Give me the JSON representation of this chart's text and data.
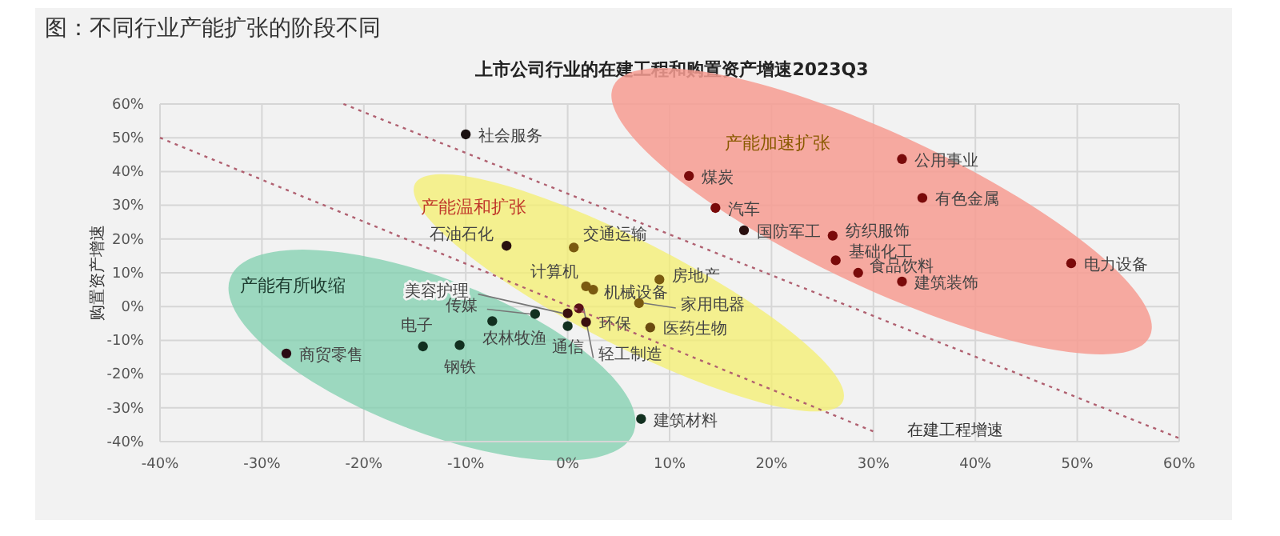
{
  "chart_data": {
    "type": "scatter",
    "title": "图：不同行业产能扩张的阶段不同",
    "subtitle": "上市公司行业的在建工程和购置资产增速2023Q3",
    "xlabel": "在建工程增速",
    "ylabel": "购置资产增速",
    "annotations": [
      "产能有所收缩",
      "产能温和扩张",
      "产能加速扩张"
    ],
    "xlim": [
      -40,
      60
    ],
    "ylim": [
      -40,
      60
    ],
    "xticks": [
      {
        "value": -40,
        "label": "-40%"
      },
      {
        "value": -30,
        "label": "-30%"
      },
      {
        "value": -20,
        "label": "-20%"
      },
      {
        "value": -10,
        "label": "-10%"
      },
      {
        "value": 0,
        "label": "0%"
      },
      {
        "value": 10,
        "label": "10%"
      },
      {
        "value": 20,
        "label": "20%"
      },
      {
        "value": 30,
        "label": "30%"
      },
      {
        "value": 40,
        "label": "40%"
      },
      {
        "value": 50,
        "label": "50%"
      },
      {
        "value": 60,
        "label": "60%"
      }
    ],
    "yticks": [
      {
        "value": -40,
        "label": "-40%"
      },
      {
        "value": -30,
        "label": "-30%"
      },
      {
        "value": -20,
        "label": "-20%"
      },
      {
        "value": -10,
        "label": "-10%"
      },
      {
        "value": 0,
        "label": "0%"
      },
      {
        "value": 10,
        "label": "10%"
      },
      {
        "value": 20,
        "label": "20%"
      },
      {
        "value": 30,
        "label": "30%"
      },
      {
        "value": 40,
        "label": "40%"
      },
      {
        "value": 50,
        "label": "50%"
      },
      {
        "value": 60,
        "label": "60%"
      }
    ],
    "grid": true,
    "marker": "circle",
    "series": [
      {
        "name": "社会服务",
        "color": "#1a1010",
        "x": [
          -10
        ],
        "values": [
          51
        ]
      },
      {
        "name": "石油石化",
        "color": "#2a1010",
        "x": [
          -6
        ],
        "values": [
          18
        ]
      },
      {
        "name": "交通运输",
        "color": "#7a5a10",
        "x": [
          0.6
        ],
        "values": [
          17.5
        ]
      },
      {
        "name": "计算机",
        "color": "#7a5a10",
        "x": [
          1.8
        ],
        "values": [
          6
        ]
      },
      {
        "name": "机械设备",
        "color": "#7a5a10",
        "x": [
          2.5
        ],
        "values": [
          5
        ]
      },
      {
        "name": "房地产",
        "color": "#7a5a10",
        "x": [
          9
        ],
        "values": [
          8
        ]
      },
      {
        "name": "美容护理",
        "color": "#3a1010",
        "x": [
          0
        ],
        "values": [
          -2
        ]
      },
      {
        "name": "轻工制造",
        "color": "#5a1018",
        "x": [
          1.1
        ],
        "values": [
          -0.5
        ]
      },
      {
        "name": "家用电器",
        "color": "#7a5a10",
        "x": [
          7
        ],
        "values": [
          1
        ]
      },
      {
        "name": "医药生物",
        "color": "#6a4a10",
        "x": [
          8.1
        ],
        "values": [
          -6.2
        ]
      },
      {
        "name": "环保",
        "color": "#3a1010",
        "x": [
          1.8
        ],
        "values": [
          -4.6
        ]
      },
      {
        "name": "通信",
        "color": "#123020",
        "x": [
          0
        ],
        "values": [
          -5.8
        ]
      },
      {
        "name": "传媒",
        "color": "#123020",
        "x": [
          -3.2
        ],
        "values": [
          -2.2
        ]
      },
      {
        "name": "农林牧渔",
        "color": "#123020",
        "x": [
          -7.4
        ],
        "values": [
          -4.3
        ]
      },
      {
        "name": "电子",
        "color": "#123020",
        "x": [
          -14.2
        ],
        "values": [
          -11.8
        ]
      },
      {
        "name": "钢铁",
        "color": "#123020",
        "x": [
          -10.6
        ],
        "values": [
          -11.4
        ]
      },
      {
        "name": "商贸零售",
        "color": "#2a0a14",
        "x": [
          -27.6
        ],
        "values": [
          -13.9
        ]
      },
      {
        "name": "建筑材料",
        "color": "#123020",
        "x": [
          7.2
        ],
        "values": [
          -33.3
        ]
      },
      {
        "name": "煤炭",
        "color": "#7a0a0a",
        "x": [
          11.9
        ],
        "values": [
          38.7
        ]
      },
      {
        "name": "汽车",
        "color": "#7a0a0a",
        "x": [
          14.5
        ],
        "values": [
          29.2
        ]
      },
      {
        "name": "国防军工",
        "color": "#2a1010",
        "x": [
          17.3
        ],
        "values": [
          22.6
        ]
      },
      {
        "name": "公用事业",
        "color": "#7a0a0a",
        "x": [
          32.8
        ],
        "values": [
          43.7
        ]
      },
      {
        "name": "有色金属",
        "color": "#7a0a0a",
        "x": [
          34.8
        ],
        "values": [
          32.2
        ]
      },
      {
        "name": "纺织服饰",
        "color": "#7a0a0a",
        "x": [
          26
        ],
        "values": [
          21
        ]
      },
      {
        "name": "基础化工",
        "color": "#7a0a0a",
        "x": [
          26.3
        ],
        "values": [
          13.7
        ]
      },
      {
        "name": "食品饮料",
        "color": "#7a0a0a",
        "x": [
          28.5
        ],
        "values": [
          10
        ]
      },
      {
        "name": "建筑装饰",
        "color": "#7a0a0a",
        "x": [
          32.8
        ],
        "values": [
          7.4
        ]
      },
      {
        "name": "电力设备",
        "color": "#7a0a0a",
        "x": [
          49.4
        ],
        "values": [
          12.8
        ]
      },
      {
        "type": "line",
        "line_style": "dotted",
        "marker": "none",
        "color": "#b06070",
        "x": [
          -40,
          30
        ],
        "values": [
          50,
          -37
        ]
      },
      {
        "type": "line",
        "line_style": "dotted",
        "marker": "none",
        "color": "#b06070",
        "x": [
          -22,
          60
        ],
        "values": [
          60,
          -39
        ]
      }
    ]
  }
}
